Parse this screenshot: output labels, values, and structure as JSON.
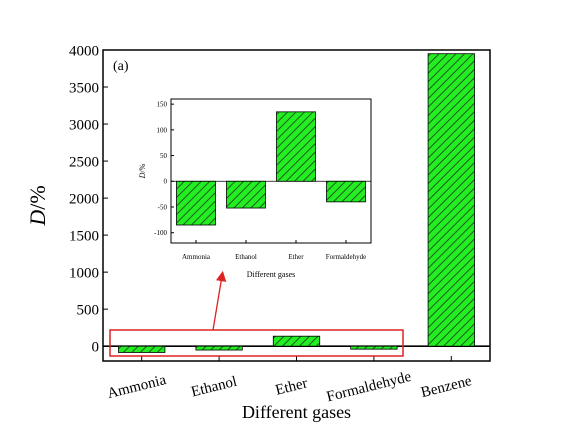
{
  "colors": {
    "bar_fill": "#22ee22",
    "bar_hatch": "#1f5a1f",
    "highlight_box": "#dd2222",
    "axis": "#000000"
  },
  "panel_label": "(a)",
  "chart_data": [
    {
      "type": "bar",
      "role": "main",
      "categories": [
        "Ammonia",
        "Ethanol",
        "Ether",
        "Formaldehyde",
        "Benzene"
      ],
      "values": [
        -85,
        -52,
        135,
        -40,
        3950
      ],
      "xlabel": "Different gases",
      "ylabel_italic": "D",
      "ylabel_rest": "/%",
      "ylim": [
        -200,
        4000
      ],
      "yticks": [
        0,
        500,
        1000,
        1500,
        2000,
        2500,
        3000,
        3500,
        4000
      ],
      "tick_labels": [
        "0",
        "500",
        "1000",
        "1500",
        "2000",
        "2500",
        "3000",
        "3500",
        "4000"
      ],
      "grid": false,
      "highlight_region": "first four bars (zoomed in inset)"
    },
    {
      "type": "bar",
      "role": "inset",
      "categories": [
        "Ammonia",
        "Ethanol",
        "Ether",
        "Formaldehyde"
      ],
      "values": [
        -85,
        -52,
        135,
        -40
      ],
      "xlabel": "Different gases",
      "ylabel_italic": "D",
      "ylabel_rest": "/%",
      "ylim": [
        -120,
        160
      ],
      "yticks": [
        -100,
        -50,
        0,
        50,
        100,
        150
      ],
      "tick_labels": [
        "-100",
        "-50",
        "0",
        "50",
        "100",
        "150"
      ],
      "grid": false
    }
  ]
}
